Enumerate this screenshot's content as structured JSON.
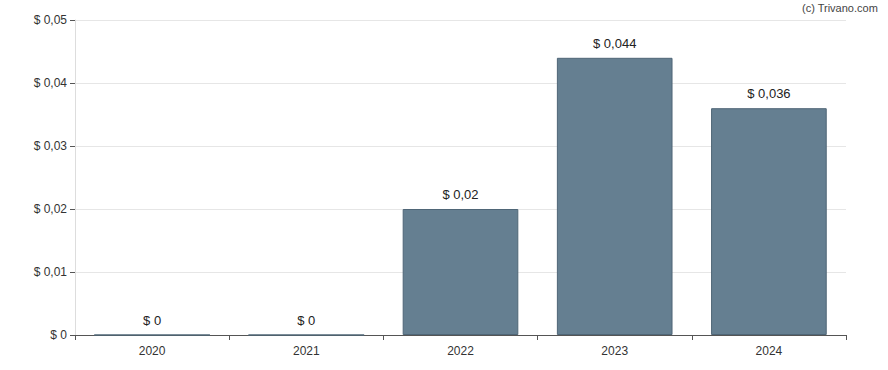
{
  "chart_data": {
    "type": "bar",
    "annotation": "(c) Trivano.com",
    "categories": [
      "2020",
      "2021",
      "2022",
      "2023",
      "2024"
    ],
    "values": [
      0,
      0,
      0.02,
      0.044,
      0.036
    ],
    "value_labels": [
      "$ 0",
      "$ 0",
      "$ 0,02",
      "$ 0,044",
      "$ 0,036"
    ],
    "data_labels": true,
    "color": "#657f91",
    "ylim": [
      0,
      0.05
    ],
    "yticks": [
      {
        "value": 0,
        "label": "$ 0"
      },
      {
        "value": 0.01,
        "label": "$ 0,01"
      },
      {
        "value": 0.02,
        "label": "$ 0,02"
      },
      {
        "value": 0.03,
        "label": "$ 0,03"
      },
      {
        "value": 0.04,
        "label": "$ 0,04"
      },
      {
        "value": 0.05,
        "label": "$ 0,05"
      }
    ],
    "grid": true
  }
}
